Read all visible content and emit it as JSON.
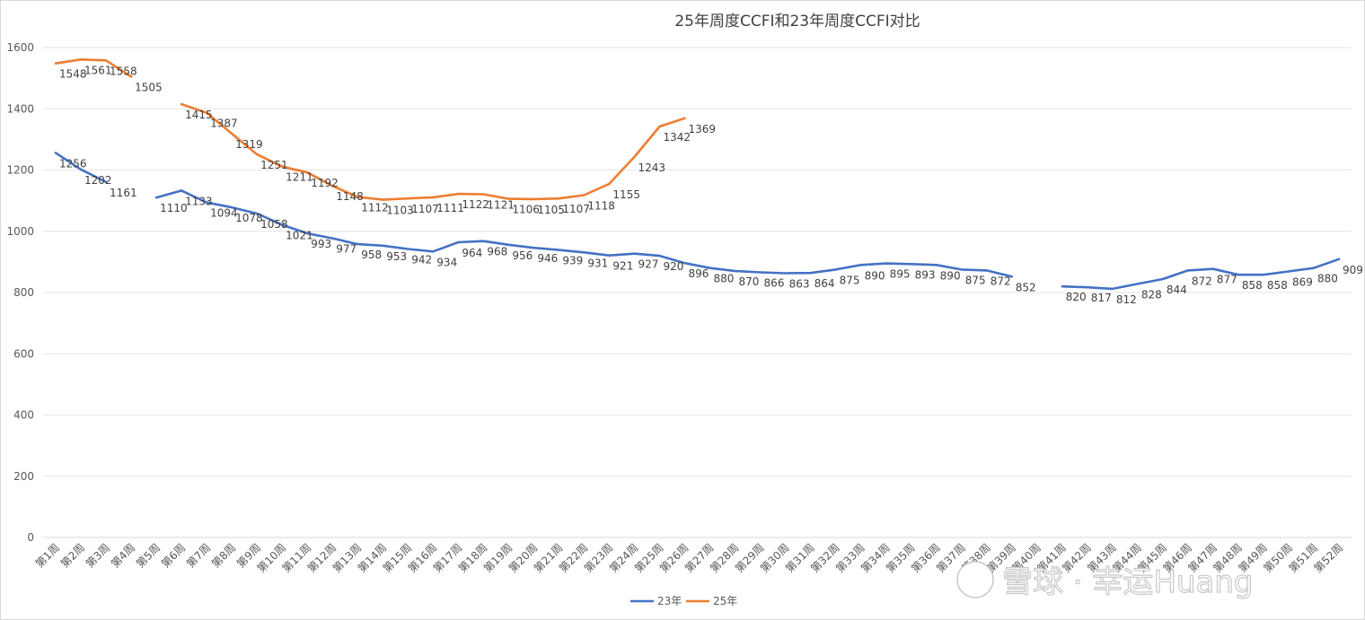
{
  "chart_data": {
    "type": "line",
    "title": "25年周度CCFI和23年周度CCFI对比",
    "xlabel": "",
    "ylabel": "",
    "ylim": [
      0,
      1600
    ],
    "yticks": [
      0,
      200,
      400,
      600,
      800,
      1000,
      1200,
      1400,
      1600
    ],
    "grid": true,
    "legend_position": "bottom",
    "categories": [
      "第1周",
      "第2周",
      "第3周",
      "第4周",
      "第5周",
      "第6周",
      "第7周",
      "第8周",
      "第9周",
      "第10周",
      "第11周",
      "第12周",
      "第13周",
      "第14周",
      "第15周",
      "第16周",
      "第17周",
      "第18周",
      "第19周",
      "第20周",
      "第21周",
      "第22周",
      "第23周",
      "第24周",
      "第25周",
      "第26周",
      "第27周",
      "第28周",
      "第29周",
      "第30周",
      "第31周",
      "第32周",
      "第33周",
      "第34周",
      "第35周",
      "第36周",
      "第37周",
      "第38周",
      "第39周",
      "第40周",
      "第41周",
      "第42周",
      "第43周",
      "第44周",
      "第45周",
      "第46周",
      "第47周",
      "第48周",
      "第49周",
      "第50周",
      "第51周",
      "第52周"
    ],
    "series": [
      {
        "name": "23年",
        "color": "#4472c4",
        "values": [
          1256,
          1202,
          1161,
          null,
          1110,
          1133,
          1094,
          1078,
          1058,
          1021,
          993,
          977,
          958,
          953,
          942,
          934,
          964,
          968,
          956,
          946,
          939,
          931,
          921,
          927,
          920,
          896,
          880,
          870,
          866,
          863,
          864,
          875,
          890,
          895,
          893,
          890,
          875,
          872,
          852,
          null,
          820,
          817,
          812,
          828,
          844,
          872,
          877,
          858,
          858,
          869,
          880,
          909
        ]
      },
      {
        "name": "25年",
        "color": "#ed7d31",
        "values": [
          1548,
          1561,
          1558,
          1505,
          null,
          1415,
          1387,
          1319,
          1251,
          1211,
          1192,
          1148,
          1112,
          1103,
          1107,
          1111,
          1122,
          1121,
          1106,
          1105,
          1107,
          1118,
          1155,
          1243,
          1342,
          1369,
          null,
          null,
          null,
          null,
          null,
          null,
          null,
          null,
          null,
          null,
          null,
          null,
          null,
          null,
          null,
          null,
          null,
          null,
          null,
          null,
          null,
          null,
          null,
          null,
          null,
          null
        ]
      }
    ]
  },
  "watermark": "雪球 · 幸运Huang"
}
